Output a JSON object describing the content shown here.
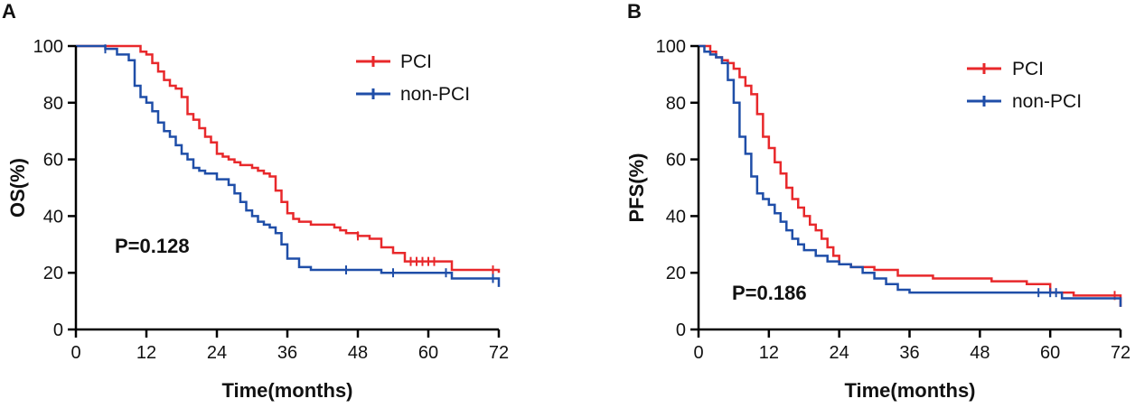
{
  "chart_data": [
    {
      "type": "line",
      "panel_label": "A",
      "xlabel": "Time(months)",
      "ylabel": "OS(%)",
      "xlim": [
        0,
        72
      ],
      "ylim": [
        0,
        100
      ],
      "xticks": [
        0,
        12,
        24,
        36,
        48,
        60,
        72
      ],
      "yticks": [
        0,
        20,
        40,
        60,
        80,
        100
      ],
      "legend_position": "top-right",
      "annotation": "P=0.128",
      "series": [
        {
          "name": "PCI",
          "color": "#e8282b",
          "x": [
            0,
            10,
            11,
            12,
            13,
            14,
            15,
            16,
            17,
            18,
            19,
            20,
            21,
            22,
            23,
            24,
            25,
            26,
            27,
            28,
            30,
            31,
            32,
            33,
            34,
            35,
            36,
            37,
            38,
            40,
            42,
            44,
            45,
            46,
            48,
            50,
            52,
            54,
            56,
            60,
            64,
            72
          ],
          "y": [
            100,
            100,
            98,
            97,
            94,
            91,
            88,
            86,
            85,
            82,
            76,
            74,
            71,
            68,
            66,
            62,
            61,
            60,
            59,
            58,
            57,
            56,
            55,
            54,
            49,
            45,
            41,
            39,
            38,
            37,
            37,
            36,
            35,
            34,
            33,
            32,
            29,
            27,
            24,
            24,
            21,
            20
          ],
          "censor_x": [
            48,
            57,
            58,
            59,
            60,
            61,
            71
          ]
        },
        {
          "name": "non-PCI",
          "color": "#1f4ea8",
          "x": [
            0,
            5,
            7,
            9,
            10,
            11,
            12,
            13,
            14,
            15,
            16,
            17,
            18,
            19,
            20,
            21,
            22,
            24,
            26,
            27,
            28,
            29,
            30,
            31,
            32,
            33,
            34,
            35,
            36,
            38,
            40,
            42,
            44,
            48,
            52,
            56,
            60,
            64,
            72
          ],
          "y": [
            100,
            99,
            97,
            95,
            86,
            82,
            80,
            77,
            73,
            70,
            68,
            65,
            62,
            60,
            57,
            56,
            55,
            53,
            51,
            48,
            45,
            42,
            40,
            38,
            37,
            36,
            34,
            30,
            25,
            22,
            21,
            21,
            21,
            21,
            20,
            20,
            20,
            18,
            15
          ],
          "censor_x": [
            5,
            46,
            54,
            63,
            71
          ]
        }
      ]
    },
    {
      "type": "line",
      "panel_label": "B",
      "xlabel": "Time(months)",
      "ylabel": "PFS(%)",
      "xlim": [
        0,
        72
      ],
      "ylim": [
        0,
        100
      ],
      "xticks": [
        0,
        12,
        24,
        36,
        48,
        60,
        72
      ],
      "yticks": [
        0,
        20,
        40,
        60,
        80,
        100
      ],
      "legend_position": "top-right",
      "annotation": "P=0.186",
      "series": [
        {
          "name": "PCI",
          "color": "#e8282b",
          "x": [
            0,
            2,
            3,
            4,
            5,
            6,
            7,
            8,
            9,
            10,
            11,
            12,
            13,
            14,
            15,
            16,
            17,
            18,
            19,
            20,
            21,
            22,
            23,
            24,
            26,
            30,
            34,
            40,
            50,
            56,
            60,
            64,
            72
          ],
          "y": [
            100,
            98,
            96,
            95,
            94,
            92,
            89,
            86,
            83,
            76,
            68,
            64,
            59,
            55,
            50,
            46,
            43,
            40,
            37,
            35,
            32,
            29,
            26,
            23,
            22,
            21,
            19,
            18,
            17,
            16,
            13,
            12,
            8
          ],
          "censor_x": [
            71
          ]
        },
        {
          "name": "non-PCI",
          "color": "#1f4ea8",
          "x": [
            0,
            1,
            2,
            3,
            4,
            5,
            6,
            7,
            8,
            9,
            10,
            11,
            12,
            13,
            14,
            15,
            16,
            17,
            18,
            20,
            22,
            24,
            26,
            28,
            30,
            32,
            34,
            36,
            40,
            50,
            62,
            72
          ],
          "y": [
            100,
            98,
            97,
            96,
            94,
            88,
            80,
            68,
            62,
            54,
            48,
            46,
            44,
            41,
            38,
            35,
            32,
            30,
            28,
            26,
            24,
            23,
            22,
            20,
            18,
            16,
            14,
            13,
            13,
            13,
            11,
            8
          ],
          "censor_x": [
            58,
            60,
            61
          ]
        }
      ]
    }
  ]
}
